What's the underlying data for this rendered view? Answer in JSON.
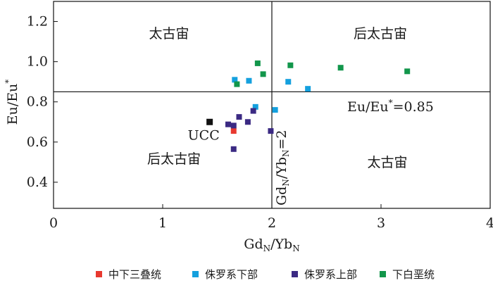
{
  "chart_data": {
    "type": "scatter",
    "xlabel_parts": {
      "main": "Gd",
      "sub1": "N",
      "sep": "/Yb",
      "sub2": "N"
    },
    "ylabel": "Eu/Eu*",
    "xlim": [
      0,
      4
    ],
    "ylim": [
      0.27,
      1.3
    ],
    "x_ticks": [
      0,
      1,
      2,
      3,
      4
    ],
    "y_ticks": [
      0.4,
      0.6,
      0.8,
      1.0,
      1.2
    ],
    "y_tick_labels": [
      "0.4",
      "0.6",
      "0.8",
      "1.0",
      "1.2"
    ],
    "reference_lines": {
      "horizontal": {
        "y": 0.85,
        "label": "Eu/Eu*=0.85"
      },
      "vertical": {
        "x": 2,
        "label": "GdN/YbN=2"
      }
    },
    "region_labels": {
      "top_left": "太古宙",
      "top_right": "后太古宙",
      "bottom_left": "后太古宙",
      "bottom_right": "太古宙"
    },
    "reference_point": {
      "label": "UCC",
      "x": 1.43,
      "y": 0.7,
      "color": "#111111"
    },
    "series": [
      {
        "name": "中下三叠统",
        "color": "#e8392f",
        "points": [
          [
            1.65,
            0.655
          ]
        ]
      },
      {
        "name": "侏罗系下部",
        "color": "#14a0de",
        "points": [
          [
            1.66,
            0.91
          ],
          [
            1.79,
            0.905
          ],
          [
            1.85,
            0.775
          ],
          [
            2.03,
            0.76
          ],
          [
            2.15,
            0.9
          ],
          [
            2.33,
            0.865
          ]
        ]
      },
      {
        "name": "侏罗系上部",
        "color": "#3b2a83",
        "points": [
          [
            1.6,
            0.688
          ],
          [
            1.65,
            0.682
          ],
          [
            1.7,
            0.725
          ],
          [
            1.78,
            0.7
          ],
          [
            1.83,
            0.755
          ],
          [
            1.99,
            0.655
          ],
          [
            1.65,
            0.565
          ]
        ]
      },
      {
        "name": "下白垩统",
        "color": "#12964b",
        "points": [
          [
            1.68,
            0.888
          ],
          [
            1.87,
            0.992
          ],
          [
            1.92,
            0.938
          ],
          [
            2.17,
            0.982
          ],
          [
            2.63,
            0.97
          ],
          [
            3.24,
            0.952
          ]
        ]
      }
    ],
    "legend_position": "bottom"
  }
}
